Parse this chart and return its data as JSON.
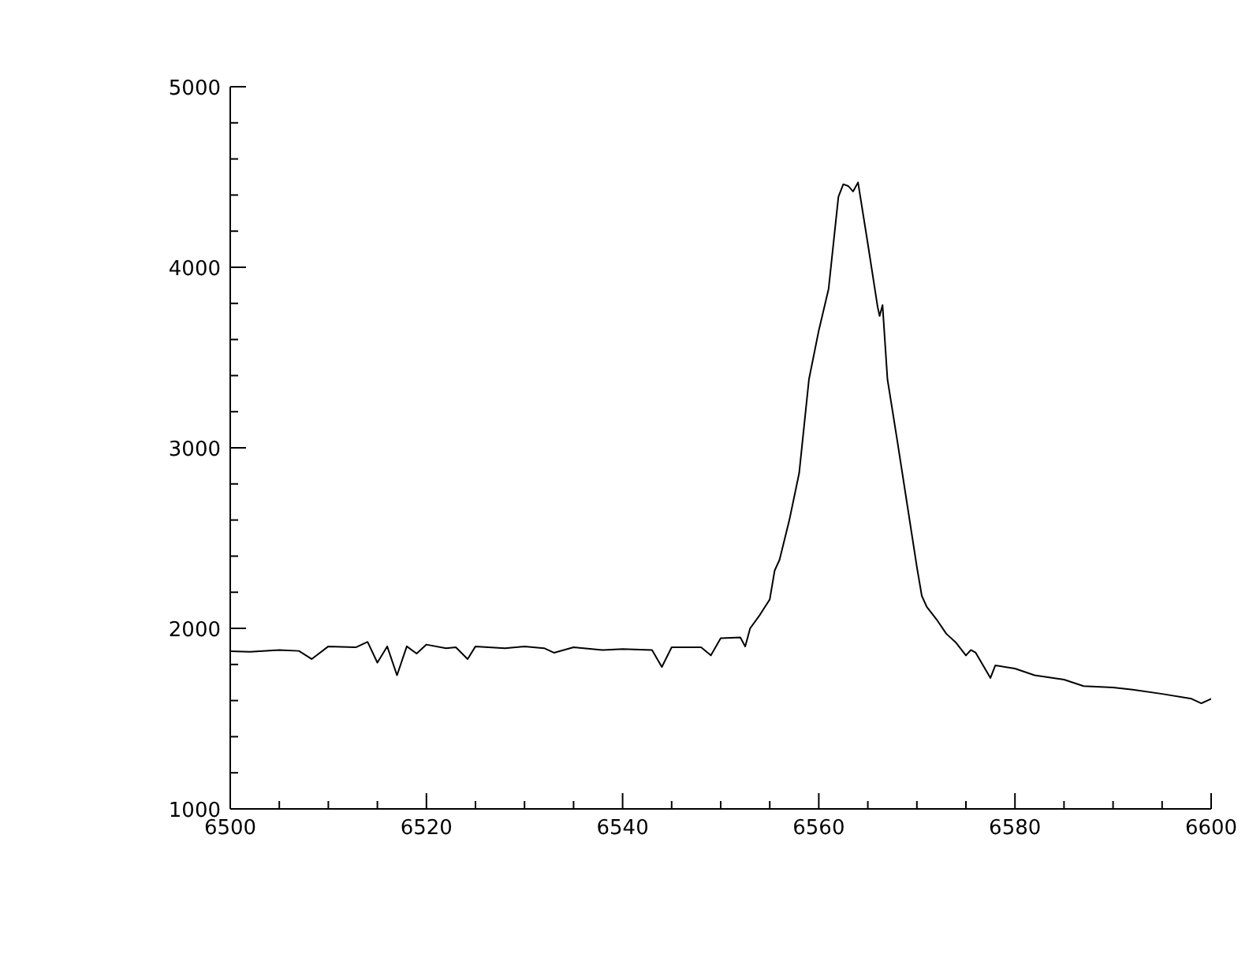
{
  "chart_data": {
    "type": "line",
    "x": [
      6500,
      6502,
      6505,
      6507,
      6508.3,
      6510,
      6512.8,
      6514,
      6515,
      6516,
      6517,
      6518,
      6519,
      6520,
      6522,
      6523,
      6524.2,
      6525,
      6528,
      6530,
      6532,
      6533,
      6535,
      6538,
      6540,
      6543,
      6544,
      6545,
      6548,
      6549,
      6550,
      6552,
      6552.5,
      6553,
      6554,
      6555,
      6555.5,
      6556,
      6557,
      6558,
      6559,
      6560,
      6561,
      6562,
      6562.5,
      6563,
      6563.5,
      6564,
      6565,
      6566,
      6566.2,
      6566.5,
      6567,
      6568,
      6569,
      6570,
      6570.5,
      6571,
      6572,
      6573,
      6574,
      6575,
      6575.5,
      6576,
      6577.5,
      6578,
      6580,
      6582,
      6585,
      6587,
      6590,
      6592,
      6595,
      6598,
      6599,
      6600
    ],
    "series": [
      {
        "color": "#000000",
        "values": [
          1873,
          1870,
          1880,
          1875,
          1830,
          1900,
          1895,
          1925,
          1810,
          1900,
          1740,
          1900,
          1860,
          1910,
          1890,
          1895,
          1830,
          1900,
          1890,
          1900,
          1890,
          1865,
          1895,
          1880,
          1885,
          1880,
          1786,
          1895,
          1895,
          1850,
          1945,
          1950,
          1900,
          2000,
          2075,
          2160,
          2320,
          2380,
          2600,
          2860,
          3380,
          3650,
          3880,
          4390,
          4460,
          4450,
          4420,
          4470,
          4130,
          3780,
          3730,
          3790,
          3380,
          3040,
          2690,
          2340,
          2180,
          2120,
          2050,
          1970,
          1920,
          1850,
          1880,
          1865,
          1725,
          1795,
          1777,
          1740,
          1716,
          1680,
          1672,
          1660,
          1637,
          1610,
          1585,
          1610
        ]
      }
    ],
    "xlim": [
      6500,
      6600
    ],
    "xticks": [
      6500,
      {
        "value": 6505,
        "label": null
      },
      {
        "value": 6510,
        "label": null
      },
      {
        "value": 6515,
        "label": null
      },
      6520,
      {
        "value": 6525,
        "label": null
      },
      {
        "value": 6530,
        "label": null
      },
      {
        "value": 6535,
        "label": null
      },
      6540,
      {
        "value": 6545,
        "label": null
      },
      {
        "value": 6550,
        "label": null
      },
      {
        "value": 6555,
        "label": null
      },
      6560,
      {
        "value": 6565,
        "label": null
      },
      {
        "value": 6570,
        "label": null
      },
      {
        "value": 6575,
        "label": null
      },
      6580,
      {
        "value": 6585,
        "label": null
      },
      {
        "value": 6590,
        "label": null
      },
      {
        "value": 6595,
        "label": null
      },
      6600
    ],
    "ylim": [
      1000,
      5000
    ],
    "yticks": [
      1000,
      {
        "value": 1200,
        "label": null
      },
      {
        "value": 1400,
        "label": null
      },
      {
        "value": 1600,
        "label": null
      },
      {
        "value": 1800,
        "label": null
      },
      2000,
      {
        "value": 2200,
        "label": null
      },
      {
        "value": 2400,
        "label": null
      },
      {
        "value": 2600,
        "label": null
      },
      {
        "value": 2800,
        "label": null
      },
      3000,
      {
        "value": 3200,
        "label": null
      },
      {
        "value": 3400,
        "label": null
      },
      {
        "value": 3600,
        "label": null
      },
      {
        "value": 3800,
        "label": null
      },
      4000,
      {
        "value": 4200,
        "label": null
      },
      {
        "value": 4400,
        "label": null
      },
      {
        "value": 4600,
        "label": null
      },
      {
        "value": 4800,
        "label": null
      },
      5000
    ],
    "grid": false,
    "legend": false,
    "marker": "none",
    "line_style": "solid"
  }
}
